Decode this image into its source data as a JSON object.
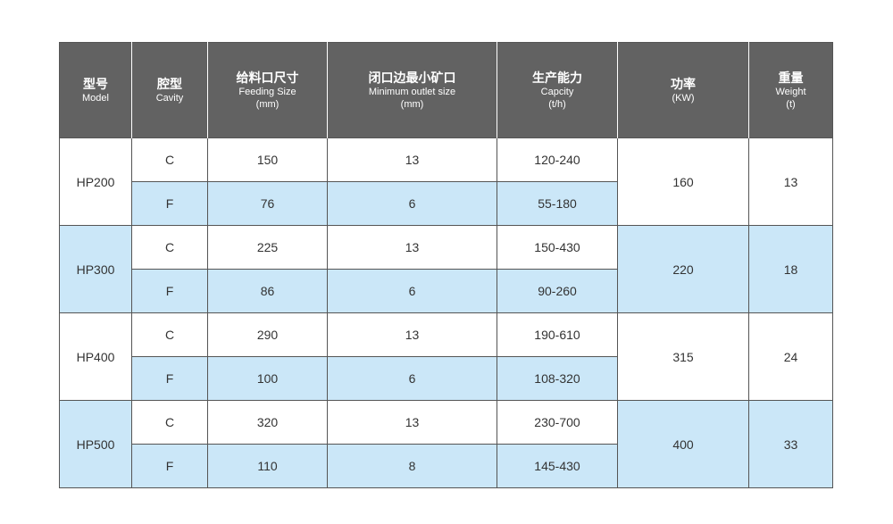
{
  "headers": [
    {
      "cn": "型号",
      "en": "Model",
      "unit": ""
    },
    {
      "cn": "腔型",
      "en": "Cavity",
      "unit": ""
    },
    {
      "cn": "给料口尺寸",
      "en": "Feeding Size",
      "unit": "(mm)"
    },
    {
      "cn": "闭口边最小矿口",
      "en": "Minimum outlet size",
      "unit": "(mm)"
    },
    {
      "cn": "生产能力",
      "en": "Capcity",
      "unit": "(t/h)"
    },
    {
      "cn": "功率",
      "en": "(KW)",
      "unit": ""
    },
    {
      "cn": "重量",
      "en": "Weight",
      "unit": "(t)"
    }
  ],
  "models": [
    {
      "model": "HP200",
      "power": "160",
      "weight": "13",
      "rows": [
        {
          "cavity": "C",
          "feeding": "150",
          "outlet": "13",
          "capacity": "120-240"
        },
        {
          "cavity": "F",
          "feeding": "76",
          "outlet": "6",
          "capacity": "55-180"
        }
      ]
    },
    {
      "model": "HP300",
      "power": "220",
      "weight": "18",
      "rows": [
        {
          "cavity": "C",
          "feeding": "225",
          "outlet": "13",
          "capacity": "150-430"
        },
        {
          "cavity": "F",
          "feeding": "86",
          "outlet": "6",
          "capacity": "90-260"
        }
      ]
    },
    {
      "model": "HP400",
      "power": "315",
      "weight": "24",
      "rows": [
        {
          "cavity": "C",
          "feeding": "290",
          "outlet": "13",
          "capacity": "190-610"
        },
        {
          "cavity": "F",
          "feeding": "100",
          "outlet": "6",
          "capacity": "108-320"
        }
      ]
    },
    {
      "model": "HP500",
      "power": "400",
      "weight": "33",
      "rows": [
        {
          "cavity": "C",
          "feeding": "320",
          "outlet": "13",
          "capacity": "230-700"
        },
        {
          "cavity": "F",
          "feeding": "110",
          "outlet": "8",
          "capacity": "145-430"
        }
      ]
    }
  ],
  "colors": {
    "header_bg": "#626262",
    "stripe_blue": "#cbe7f8",
    "border": "#555555"
  }
}
